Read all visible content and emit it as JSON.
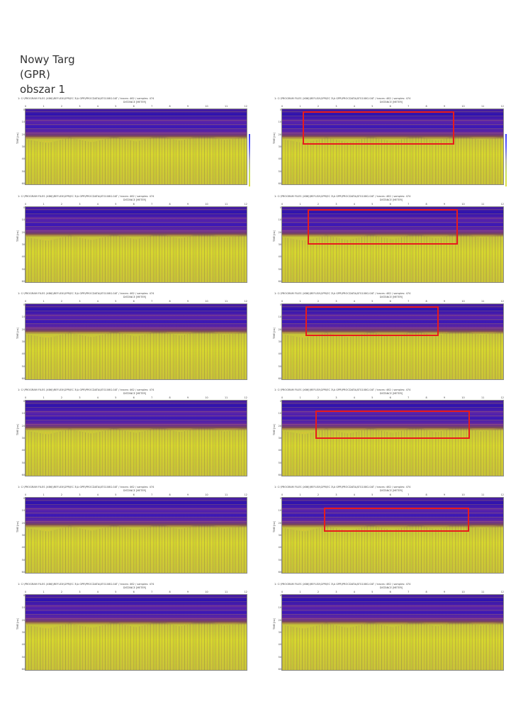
{
  "page": {
    "title_lines": [
      "Nowy Targ",
      "(GPR)",
      "obszar 1"
    ]
  },
  "panel_common": {
    "header": "1: C:\\PROGRAM FILES (X86)\\REFLEX\\GPR\\EC 3\\A GPR\\PROCDATA\\ATG108G.0AT / traces: 462 / samples: 474",
    "x_axis_title": "DISTANCE [METER]",
    "y_axis_title": "TIME [ns]",
    "x_ticks": [
      "0",
      "1",
      "2",
      "3",
      "4",
      "5",
      "6",
      "7",
      "8",
      "9",
      "10",
      "11",
      "12"
    ],
    "y_ticks": [
      "0",
      "10",
      "20",
      "30",
      "40",
      "50",
      "60"
    ]
  },
  "colors": {
    "roi": "#e81b1b",
    "background_upper": "#4a1f9e",
    "background_lower": "#d7d72e"
  },
  "panels": [
    {
      "id": "row1-left",
      "roi": null
    },
    {
      "id": "row1-right",
      "roi": true
    },
    {
      "id": "row2-left",
      "roi": null
    },
    {
      "id": "row2-right",
      "roi": true
    },
    {
      "id": "row3-left",
      "roi": null
    },
    {
      "id": "row3-right",
      "roi": true
    },
    {
      "id": "row4-left",
      "roi": null
    },
    {
      "id": "row4-right",
      "roi": true
    },
    {
      "id": "row5-left",
      "roi": null
    },
    {
      "id": "row5-right",
      "roi": true
    },
    {
      "id": "row6-left",
      "roi": null
    },
    {
      "id": "row6-right",
      "roi": null
    }
  ]
}
